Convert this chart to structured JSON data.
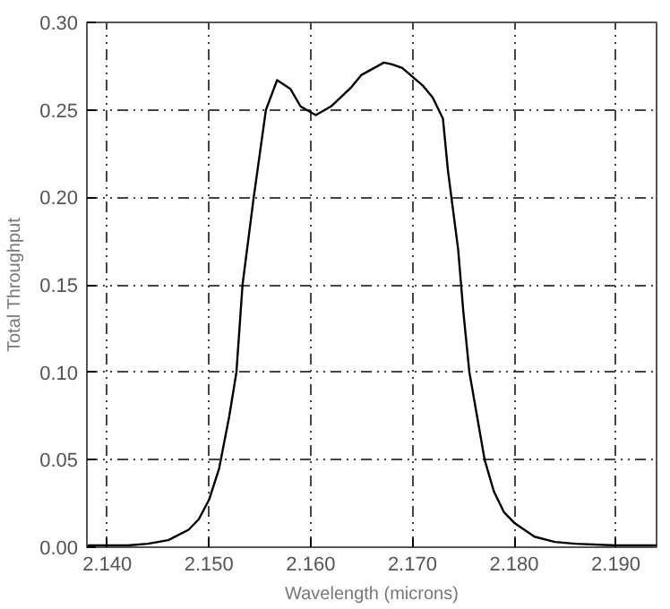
{
  "chart_data": {
    "type": "line",
    "xlabel": "Wavelength (microns)",
    "ylabel": "Total Throughput",
    "xlim": [
      2.138,
      2.194
    ],
    "ylim": [
      0,
      0.3
    ],
    "xticks": [
      {
        "value": 2.14,
        "label": "2.140"
      },
      {
        "value": 2.15,
        "label": "2.150"
      },
      {
        "value": 2.16,
        "label": "2.160"
      },
      {
        "value": 2.17,
        "label": "2.170"
      },
      {
        "value": 2.18,
        "label": "2.180"
      },
      {
        "value": 2.19,
        "label": "2.190"
      }
    ],
    "yticks": [
      {
        "value": 0,
        "label": "0.00"
      },
      {
        "value": 0.05,
        "label": "0.05"
      },
      {
        "value": 0.1,
        "label": "0.10"
      },
      {
        "value": 0.15,
        "label": "0.15"
      },
      {
        "value": 0.2,
        "label": "0.20"
      },
      {
        "value": 0.25,
        "label": "0.25"
      },
      {
        "value": 0.3,
        "label": "0.30"
      }
    ],
    "grid": true,
    "line_style": "solid",
    "marker": "none",
    "series": [
      {
        "color": "#000000",
        "x": [
          2.138,
          2.142,
          2.144,
          2.146,
          2.148,
          2.149,
          2.15,
          2.151,
          2.152,
          2.1527,
          2.1533,
          2.1544,
          2.1556,
          2.1567,
          2.158,
          2.159,
          2.1605,
          2.162,
          2.164,
          2.165,
          2.1672,
          2.168,
          2.169,
          2.17,
          2.171,
          2.172,
          2.173,
          2.1735,
          2.1745,
          2.175,
          2.1756,
          2.1765,
          2.1771,
          2.178,
          2.179,
          2.18,
          2.182,
          2.184,
          2.186,
          2.19,
          2.194
        ],
        "values": [
          0.001,
          0.001,
          0.002,
          0.004,
          0.01,
          0.016,
          0.027,
          0.045,
          0.075,
          0.1,
          0.15,
          0.2,
          0.25,
          0.267,
          0.262,
          0.252,
          0.247,
          0.252,
          0.263,
          0.27,
          0.277,
          0.276,
          0.274,
          0.269,
          0.264,
          0.257,
          0.245,
          0.215,
          0.17,
          0.135,
          0.1,
          0.07,
          0.05,
          0.032,
          0.02,
          0.014,
          0.006,
          0.003,
          0.002,
          0.001,
          0.001
        ]
      }
    ]
  }
}
